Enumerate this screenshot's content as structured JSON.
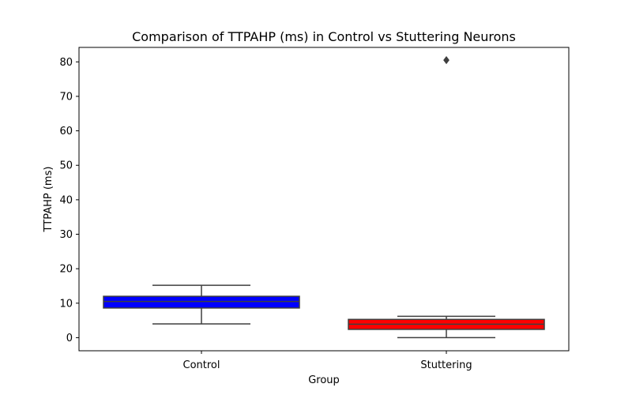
{
  "chart_data": {
    "type": "box",
    "title": "Comparison of TTPAHP (ms) in Control vs Stuttering Neurons",
    "xlabel": "Group",
    "ylabel": "TTPAHP (ms)",
    "categories": [
      "Control",
      "Stuttering"
    ],
    "ylim": [
      -3.8,
      84.2
    ],
    "yticks": [
      0,
      10,
      20,
      30,
      40,
      50,
      60,
      70,
      80
    ],
    "grid": false,
    "boxes": [
      {
        "name": "Control",
        "whisker_low": 4.0,
        "q1": 8.6,
        "median": 10.5,
        "q3": 12.0,
        "whisker_high": 15.2,
        "outliers": [],
        "color": "#0000ff"
      },
      {
        "name": "Stuttering",
        "whisker_low": 0.0,
        "q1": 2.4,
        "median": 3.9,
        "q3": 5.3,
        "whisker_high": 6.2,
        "outliers": [
          80.5
        ],
        "color": "#ff0000"
      }
    ]
  }
}
